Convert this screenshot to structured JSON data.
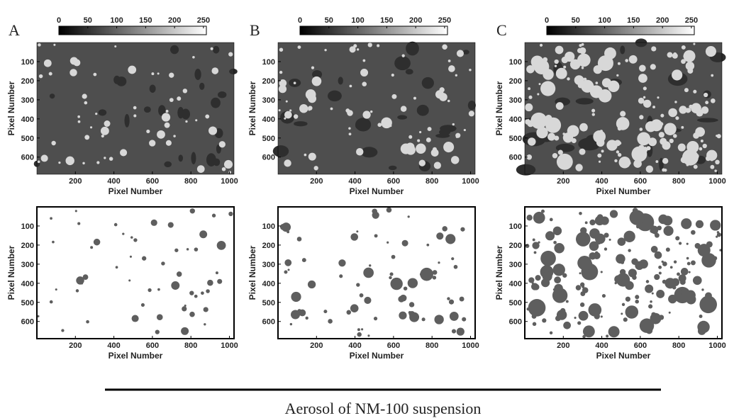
{
  "panels": [
    {
      "label": "A",
      "colorbar": {
        "lim": [
          0,
          255
        ],
        "ticks": [
          0,
          50,
          100,
          150,
          200,
          250
        ]
      },
      "top": {
        "xlabel": "Pixel Number",
        "ylabel": "Pixel Number",
        "xlim": [
          0,
          1024
        ],
        "ylim": [
          0,
          690
        ],
        "xticks": [
          200,
          400,
          600,
          800,
          1000
        ],
        "yticks": [
          100,
          200,
          300,
          400,
          500,
          600
        ]
      },
      "bottom": {
        "xlabel": "Pixel Number",
        "ylabel": "Pixel Number",
        "xlim": [
          0,
          1024
        ],
        "ylim": [
          0,
          690
        ],
        "xticks": [
          200,
          400,
          600,
          800,
          1000
        ],
        "yticks": [
          100,
          200,
          300,
          400,
          500,
          600
        ]
      }
    },
    {
      "label": "B",
      "colorbar": {
        "lim": [
          0,
          255
        ],
        "ticks": [
          0,
          50,
          100,
          150,
          200,
          250
        ]
      },
      "top": {
        "xlabel": "Pixel Number",
        "ylabel": "Pixel Number",
        "xlim": [
          0,
          1024
        ],
        "ylim": [
          0,
          690
        ],
        "xticks": [
          200,
          400,
          600,
          800,
          1000
        ],
        "yticks": [
          100,
          200,
          300,
          400,
          500,
          600
        ]
      },
      "bottom": {
        "xlabel": "Pixel Number",
        "ylabel": "Pixel Number",
        "xlim": [
          0,
          1024
        ],
        "ylim": [
          0,
          690
        ],
        "xticks": [
          200,
          400,
          600,
          800,
          1000
        ],
        "yticks": [
          100,
          200,
          300,
          400,
          500,
          600
        ]
      }
    },
    {
      "label": "C",
      "colorbar": {
        "lim": [
          0,
          255
        ],
        "ticks": [
          0,
          50,
          100,
          150,
          200,
          250
        ]
      },
      "top": {
        "xlabel": "Pixel Number",
        "ylabel": "Pixel Number",
        "xlim": [
          0,
          1024
        ],
        "ylim": [
          0,
          690
        ],
        "xticks": [
          200,
          400,
          600,
          800,
          1000
        ],
        "yticks": [
          100,
          200,
          300,
          400,
          500,
          600
        ]
      },
      "bottom": {
        "xlabel": "Pixel Number",
        "ylabel": "Pixel Number",
        "xlim": [
          0,
          1024
        ],
        "ylim": [
          0,
          690
        ],
        "xticks": [
          200,
          400,
          600,
          800,
          1000
        ],
        "yticks": [
          100,
          200,
          300,
          400,
          500,
          600
        ]
      }
    }
  ],
  "caption": "Aerosol of NM-100 suspension"
}
